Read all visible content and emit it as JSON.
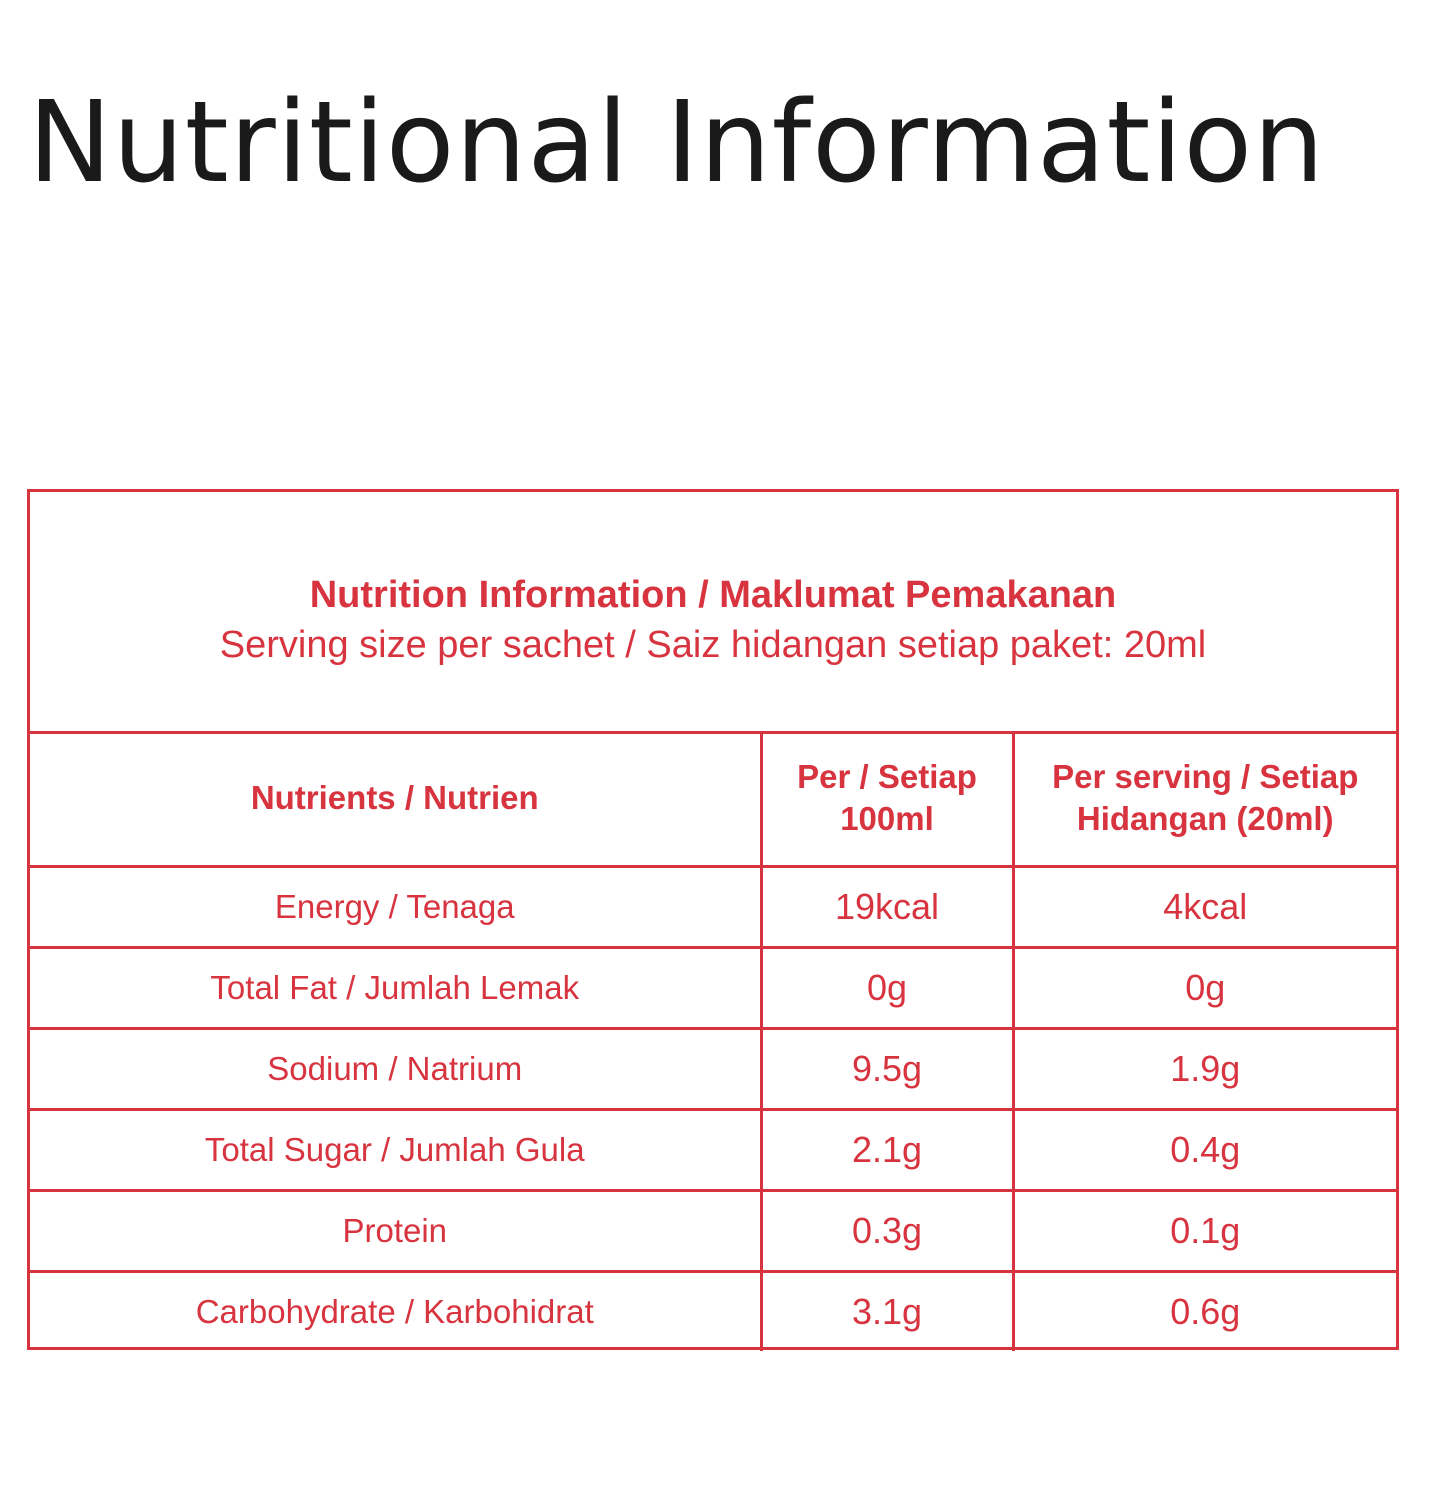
{
  "title": "Nutritional Information",
  "panel": {
    "heading": "Nutrition Information / Maklumat Pemakanan",
    "subheading": "Serving size per sachet / Saiz hidangan setiap paket: 20ml"
  },
  "table": {
    "headers": [
      [
        "Nutrients / Nutrien"
      ],
      [
        "Per / Setiap",
        "100ml"
      ],
      [
        "Per serving / Setiap",
        "Hidangan (20ml)"
      ]
    ],
    "rows": [
      {
        "nutrient": "Energy / Tenaga",
        "per_100ml": "19kcal",
        "per_serving": "4kcal"
      },
      {
        "nutrient": "Total Fat / Jumlah Lemak",
        "per_100ml": "0g",
        "per_serving": "0g"
      },
      {
        "nutrient": "Sodium / Natrium",
        "per_100ml": "9.5g",
        "per_serving": "1.9g"
      },
      {
        "nutrient": "Total Sugar / Jumlah Gula",
        "per_100ml": "2.1g",
        "per_serving": "0.4g"
      },
      {
        "nutrient": "Protein",
        "per_100ml": "0.3g",
        "per_serving": "0.1g"
      },
      {
        "nutrient": "Carbohydrate / Karbohidrat",
        "per_100ml": "3.1g",
        "per_serving": "0.6g"
      }
    ]
  },
  "colors": {
    "accent": "#d7343f",
    "title_text": "#1a1a1a",
    "background": "#ffffff"
  }
}
